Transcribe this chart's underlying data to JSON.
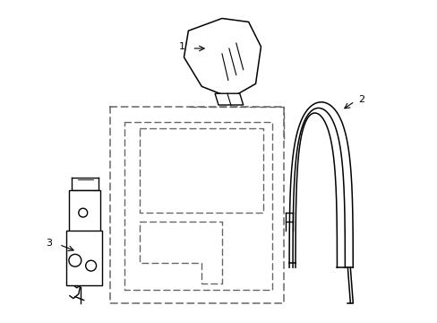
{
  "background_color": "#ffffff",
  "line_color": "#000000",
  "dashed_color": "#666666",
  "label1": "1",
  "label2": "2",
  "label3": "3",
  "figsize": [
    4.89,
    3.6
  ],
  "dpi": 100
}
